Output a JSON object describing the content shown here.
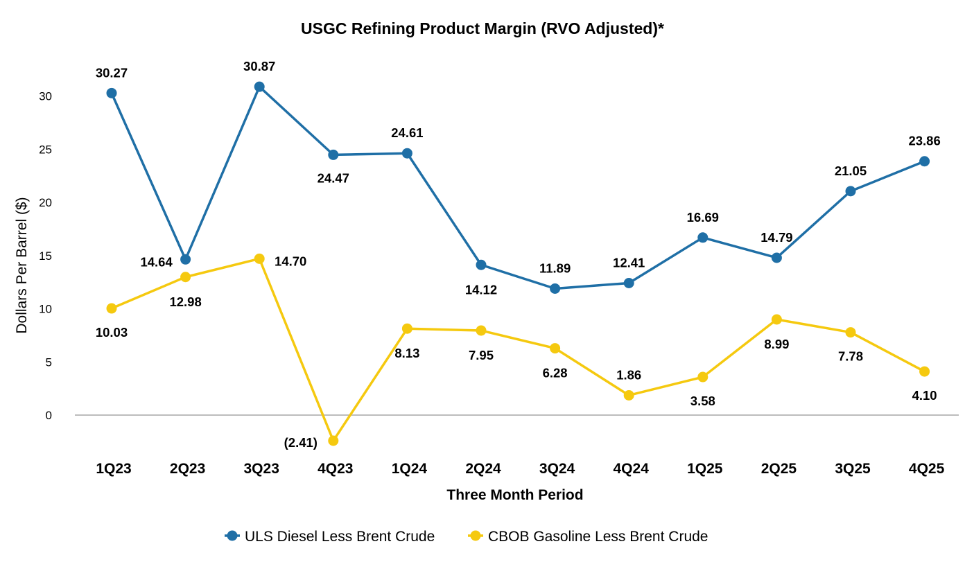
{
  "chart_data": {
    "type": "line",
    "title": "USGC Refining Product Margin (RVO Adjusted)*",
    "xlabel": "Three Month Period",
    "ylabel": "Dollars Per Barrel ($)",
    "categories": [
      "1Q23",
      "2Q23",
      "3Q23",
      "4Q23",
      "1Q24",
      "2Q24",
      "3Q24",
      "4Q24",
      "1Q25",
      "2Q25",
      "3Q25",
      "4Q25"
    ],
    "yticks": [
      "0",
      "5",
      "10",
      "15",
      "20",
      "25",
      "30"
    ],
    "ylim": [
      -5,
      35
    ],
    "series": [
      {
        "name": "ULS Diesel Less Brent Crude",
        "color": "#1f6fa6",
        "values": [
          30.27,
          14.64,
          30.87,
          24.47,
          24.61,
          14.12,
          11.89,
          12.41,
          16.69,
          14.79,
          21.05,
          23.86
        ],
        "labels": [
          "30.27",
          "14.64",
          "30.87",
          "24.47",
          "24.61",
          "14.12",
          "11.89",
          "12.41",
          "16.69",
          "14.79",
          "21.05",
          "23.86"
        ]
      },
      {
        "name": "CBOB Gasoline Less Brent Crude",
        "color": "#f5c90f",
        "values": [
          10.03,
          12.98,
          14.7,
          -2.41,
          8.13,
          7.95,
          6.28,
          1.86,
          3.58,
          8.99,
          7.78,
          4.1
        ],
        "labels": [
          "10.03",
          "12.98",
          "14.70",
          "(2.41)",
          "8.13",
          "7.95",
          "6.28",
          "1.86",
          "3.58",
          "8.99",
          "7.78",
          "4.10"
        ]
      }
    ],
    "legend_position": "bottom-center"
  }
}
